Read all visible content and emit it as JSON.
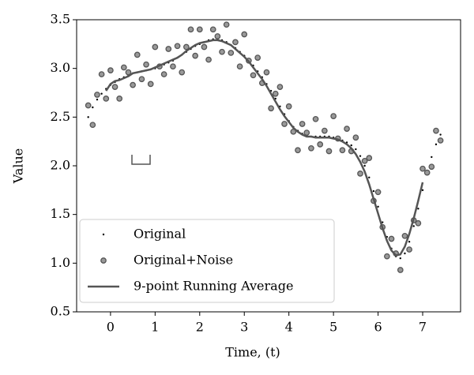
{
  "chart_data": {
    "type": "line",
    "xlabel": "Time, (t)",
    "ylabel": "Value",
    "xlim": [
      -0.76,
      7.85
    ],
    "ylim": [
      0.5,
      3.5
    ],
    "xticks": [
      0,
      1,
      2,
      3,
      4,
      5,
      6,
      7
    ],
    "yticks": [
      {
        "value": 0.5,
        "label": "0.5"
      },
      {
        "value": 1,
        "label": "1.0"
      },
      {
        "value": 1.5,
        "label": "1.5"
      },
      {
        "value": 2,
        "label": "2.0"
      },
      {
        "value": 2.5,
        "label": "2.5"
      },
      {
        "value": 3,
        "label": "3.0"
      },
      {
        "value": 3.5,
        "label": "3.5"
      }
    ],
    "legend": "lower left",
    "x": [
      -0.5,
      -0.4,
      -0.3,
      -0.2,
      -0.1,
      0,
      0.1,
      0.2,
      0.3,
      0.4,
      0.5,
      0.6,
      0.7,
      0.8,
      0.9,
      1,
      1.1,
      1.2,
      1.3,
      1.4,
      1.5,
      1.6,
      1.7,
      1.8,
      1.9,
      2,
      2.1,
      2.2,
      2.3,
      2.4,
      2.5,
      2.6,
      2.7,
      2.8,
      2.9,
      3,
      3.1,
      3.2,
      3.3,
      3.4,
      3.5,
      3.6,
      3.7,
      3.8,
      3.9,
      4,
      4.1,
      4.2,
      4.3,
      4.4,
      4.5,
      4.6,
      4.7,
      4.8,
      4.9,
      5,
      5.1,
      5.2,
      5.3,
      5.4,
      5.5,
      5.6,
      5.7,
      5.8,
      5.9,
      6,
      6.1,
      6.2,
      6.3,
      6.4,
      6.5,
      6.6,
      6.7,
      6.8,
      6.9,
      7,
      7.1,
      7.2,
      7.3,
      7.4
    ],
    "series": [
      {
        "name": "Original",
        "color": "#000000",
        "marker": "dot",
        "values": [
          2.5,
          2.6,
          2.68,
          2.74,
          2.79,
          2.83,
          2.86,
          2.89,
          2.91,
          2.93,
          2.95,
          2.96,
          2.97,
          2.98,
          2.99,
          3,
          3.02,
          3.04,
          3.06,
          3.08,
          3.11,
          3.14,
          3.17,
          3.2,
          3.23,
          3.25,
          3.27,
          3.29,
          3.3,
          3.3,
          3.29,
          3.27,
          3.24,
          3.21,
          3.17,
          3.13,
          3.08,
          3.03,
          2.97,
          2.91,
          2.84,
          2.77,
          2.69,
          2.61,
          2.53,
          2.46,
          2.4,
          2.36,
          2.33,
          2.31,
          2.3,
          2.3,
          2.3,
          2.3,
          2.3,
          2.29,
          2.28,
          2.26,
          2.24,
          2.21,
          2.17,
          2.1,
          2,
          1.88,
          1.74,
          1.58,
          1.42,
          1.27,
          1.15,
          1.07,
          1.05,
          1.1,
          1.22,
          1.38,
          1.56,
          1.75,
          1.93,
          2.09,
          2.22,
          2.32
        ]
      },
      {
        "name": "Original+Noise",
        "color": "#999999",
        "marker": "circle",
        "values": [
          2.62,
          2.42,
          2.73,
          2.94,
          2.69,
          2.98,
          2.81,
          2.69,
          3.01,
          2.96,
          2.83,
          3.14,
          2.89,
          3.04,
          2.84,
          3.22,
          3.02,
          2.94,
          3.2,
          3.02,
          3.23,
          2.96,
          3.22,
          3.4,
          3.13,
          3.4,
          3.22,
          3.09,
          3.4,
          3.33,
          3.17,
          3.45,
          3.16,
          3.27,
          3.02,
          3.35,
          3.08,
          2.93,
          3.11,
          2.85,
          2.96,
          2.59,
          2.74,
          2.81,
          2.43,
          2.61,
          2.35,
          2.16,
          2.43,
          2.34,
          2.18,
          2.48,
          2.22,
          2.36,
          2.15,
          2.51,
          2.28,
          2.16,
          2.38,
          2.15,
          2.29,
          1.92,
          2.05,
          2.08,
          1.64,
          1.73,
          1.37,
          1.07,
          1.25,
          1.1,
          0.93,
          1.28,
          1.14,
          1.44,
          1.41,
          1.97,
          1.93,
          1.99,
          2.36,
          2.26
        ]
      },
      {
        "name": "9-point Running Average",
        "color": "#555555",
        "marker": "line",
        "values": [
          null,
          null,
          null,
          null,
          2.77,
          2.84,
          2.87,
          2.88,
          2.9,
          2.92,
          2.95,
          2.96,
          2.97,
          2.98,
          2.99,
          3.01,
          3.03,
          3.05,
          3.07,
          3.09,
          3.11,
          3.14,
          3.18,
          3.21,
          3.24,
          3.26,
          3.27,
          3.28,
          3.29,
          3.29,
          3.28,
          3.26,
          3.24,
          3.2,
          3.16,
          3.12,
          3.07,
          3.01,
          2.95,
          2.89,
          2.82,
          2.74,
          2.66,
          2.58,
          2.51,
          2.45,
          2.39,
          2.35,
          2.32,
          2.3,
          2.3,
          2.29,
          2.29,
          2.29,
          2.29,
          2.28,
          2.27,
          2.25,
          2.22,
          2.18,
          2.12,
          2.04,
          1.94,
          1.81,
          1.66,
          1.51,
          1.36,
          1.23,
          1.13,
          1.08,
          1.09,
          1.17,
          1.3,
          1.46,
          1.64,
          1.83,
          null,
          null,
          null,
          null
        ]
      }
    ]
  }
}
